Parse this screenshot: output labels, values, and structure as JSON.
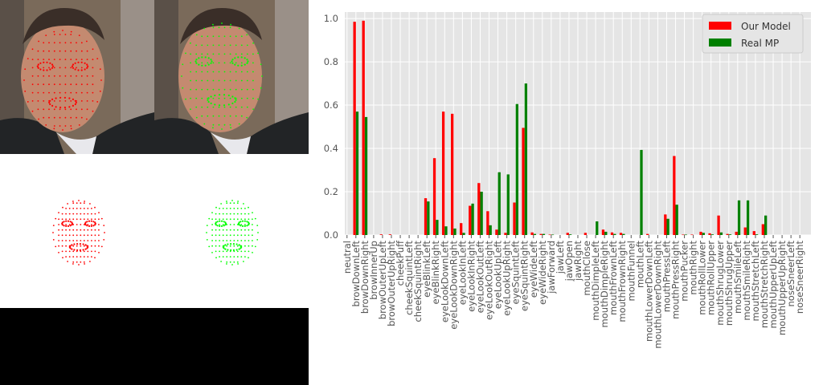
{
  "colors": {
    "our_model": "#ff0000",
    "real_mp": "#008000",
    "plot_bg": "#e5e5e5",
    "grid": "#ffffff",
    "mesh_red": "#ff0000",
    "mesh_green": "#00ff00"
  },
  "panels": {
    "photo_left": {
      "mesh": "red",
      "content": "face-photo-with-red-landmarks"
    },
    "photo_right": {
      "mesh": "green",
      "content": "face-photo-with-green-landmarks"
    },
    "mesh_left": {
      "mesh": "red"
    },
    "mesh_right": {
      "mesh": "green"
    }
  },
  "chart_data": {
    "type": "bar",
    "title": "",
    "xlabel": "",
    "ylabel": "",
    "ylim": [
      0,
      1.03
    ],
    "yticks": [
      0.0,
      0.2,
      0.4,
      0.6,
      0.8,
      1.0
    ],
    "ytick_labels": [
      "0.0",
      "0.2",
      "0.4",
      "0.6",
      "0.8",
      "1.0"
    ],
    "grid": true,
    "legend_position": "top-right",
    "categories": [
      "neutral",
      "browDownLeft",
      "browDownRight",
      "browInnerUp",
      "browOuterUpLeft",
      "browOuterUpRight",
      "cheekPuff",
      "cheekSquintLeft",
      "cheekSquintRight",
      "eyeBlinkLeft",
      "eyeBlinkRight",
      "eyeLookDownLeft",
      "eyeLookDownRight",
      "eyeLookInLeft",
      "eyeLookInRight",
      "eyeLookOutLeft",
      "eyeLookOutRight",
      "eyeLookUpLeft",
      "eyeLookUpRight",
      "eyeSquintLeft",
      "eyeSquintRight",
      "eyeWideLeft",
      "eyeWideRight",
      "jawForward",
      "jawLeft",
      "jawOpen",
      "jawRight",
      "mouthClose",
      "mouthDimpleLeft",
      "mouthDimpleRight",
      "mouthFrownLeft",
      "mouthFrownRight",
      "mouthFunnel",
      "mouthLeft",
      "mouthLowerDownLeft",
      "mouthLowerDownRight",
      "mouthPressLeft",
      "mouthPressRight",
      "mouthPucker",
      "mouthRight",
      "mouthRollLower",
      "mouthRollUpper",
      "mouthShrugLower",
      "mouthShrugUpper",
      "mouthSmileLeft",
      "mouthSmileRight",
      "mouthStretchLeft",
      "mouthStretchRight",
      "mouthUpperUpLeft",
      "mouthUpperUpRight",
      "noseSneerLeft",
      "noseSneerRight"
    ],
    "series": [
      {
        "name": "Our Model",
        "values": [
          0.0,
          0.985,
          0.99,
          0.0,
          0.003,
          0.003,
          0.0,
          0.0,
          0.0,
          0.17,
          0.355,
          0.57,
          0.56,
          0.055,
          0.135,
          0.24,
          0.11,
          0.025,
          0.01,
          0.15,
          0.495,
          0.012,
          0.005,
          0.002,
          0.0,
          0.01,
          0.0,
          0.01,
          0.0,
          0.025,
          0.012,
          0.01,
          0.0,
          0.0,
          0.005,
          0.0,
          0.095,
          0.365,
          0.002,
          0.002,
          0.015,
          0.008,
          0.09,
          0.005,
          0.015,
          0.035,
          0.018,
          0.05,
          0.0,
          0.0,
          0.0,
          0.0
        ]
      },
      {
        "name": "Real MP",
        "values": [
          0.0,
          0.57,
          0.545,
          0.0,
          0.0,
          0.0,
          0.0,
          0.0,
          0.0,
          0.155,
          0.07,
          0.04,
          0.03,
          0.01,
          0.145,
          0.2,
          0.045,
          0.29,
          0.28,
          0.605,
          0.7,
          0.005,
          0.005,
          0.002,
          0.0,
          0.003,
          0.0,
          0.0,
          0.063,
          0.015,
          0.005,
          0.005,
          0.0,
          0.393,
          0.0,
          0.0,
          0.075,
          0.14,
          0.002,
          0.0,
          0.01,
          0.003,
          0.012,
          0.003,
          0.16,
          0.16,
          0.003,
          0.09,
          0.0,
          0.0,
          0.0,
          0.0
        ]
      }
    ]
  }
}
